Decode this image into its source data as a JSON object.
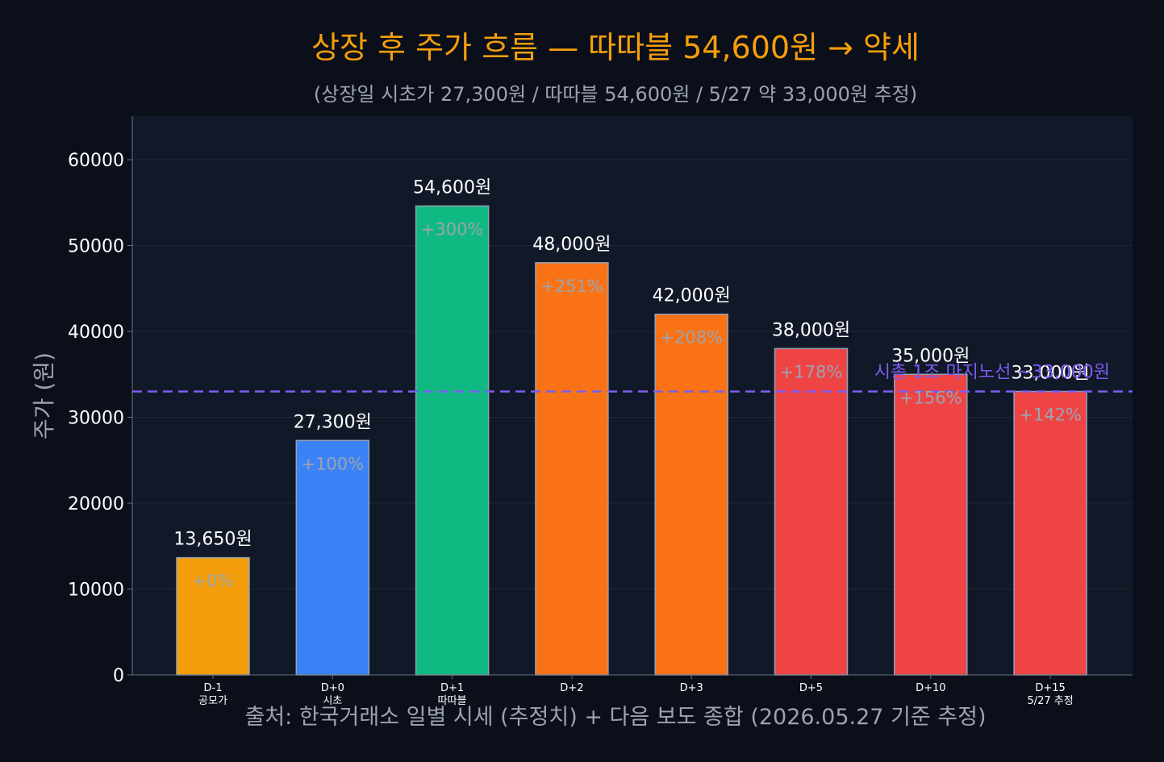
{
  "chart_data": {
    "type": "bar",
    "title": "상장 후 주가 흐름 — 따따블 54,600원 → 약세",
    "subtitle": "(상장일 시초가 27,300원 / 따따블 54,600원 / 5/27 약 33,000원 추정)",
    "ylabel": "주가 (원)",
    "ylim": [
      0,
      65000
    ],
    "yticks": [
      0,
      10000,
      20000,
      30000,
      40000,
      50000,
      60000
    ],
    "grid": true,
    "categories": [
      [
        "D-1",
        "공모가"
      ],
      [
        "D+0",
        "시초"
      ],
      [
        "D+1",
        "따따블"
      ],
      [
        "D+2"
      ],
      [
        "D+3"
      ],
      [
        "D+5"
      ],
      [
        "D+10"
      ],
      [
        "D+15",
        "5/27 추정"
      ]
    ],
    "values": [
      13650,
      27300,
      54600,
      48000,
      42000,
      38000,
      35000,
      33000
    ],
    "value_labels": [
      "13,650원",
      "27,300원",
      "54,600원",
      "48,000원",
      "42,000원",
      "38,000원",
      "35,000원",
      "33,000원"
    ],
    "pct_labels": [
      "+0%",
      "+100%",
      "+300%",
      "+251%",
      "+208%",
      "+178%",
      "+156%",
      "+142%"
    ],
    "bar_colors": [
      "#f59e0b",
      "#3b82f6",
      "#10b981",
      "#f97316",
      "#f97316",
      "#ef4444",
      "#ef4444",
      "#ef4444"
    ],
    "reference_line": {
      "value": 33000,
      "label": "시총 1조 마지노선 ~33,000원",
      "color": "#7c5cf0"
    },
    "source": "출처: 한국거래소 일별 시세 (추정치) + 다음 보도 종합 (2026.05.27 기준 추정)"
  },
  "colors": {
    "background": "#0a0f1a",
    "plot_background": "#111827",
    "title": "#f59e0b",
    "subtitle": "#9ca3af",
    "text": "#ffffff",
    "muted": "#9ca3af",
    "grid": "#1f2937",
    "axis": "#6b7280",
    "bar_edge": "#94a3b8"
  }
}
